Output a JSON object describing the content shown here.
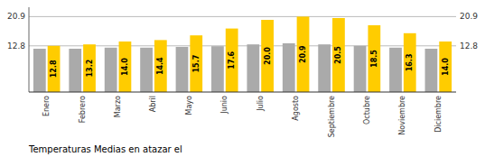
{
  "chart_data": {
    "type": "bar",
    "title": "Temperaturas Medias en atazar el",
    "categories": [
      "Enero",
      "Febrero",
      "Marzo",
      "Abril",
      "Mayo",
      "Junio",
      "Julio",
      "Agosto",
      "Septiembre",
      "Octubre",
      "Noviembre",
      "Diciembre"
    ],
    "series": [
      {
        "color": "#AAAAAA",
        "values": [
          12.0,
          12.0,
          12.3,
          12.3,
          12.5,
          12.7,
          13.2,
          13.5,
          13.2,
          12.8,
          12.3,
          12.0
        ]
      },
      {
        "color": "#FFCC00",
        "values": [
          12.8,
          13.2,
          14.0,
          14.4,
          15.7,
          17.6,
          20.0,
          20.9,
          20.5,
          18.5,
          16.3,
          14.0
        ],
        "value_labels": [
          "12.8",
          "13.2",
          "14.0",
          "14.4",
          "15.7",
          "17.6",
          "20.0",
          "20.9",
          "20.5",
          "18.5",
          "16.3",
          "14.0"
        ],
        "data_labels": true
      }
    ],
    "ylim": [
      0,
      23.5
    ],
    "yticks": [
      12.8,
      20.9
    ],
    "grid": true
  }
}
